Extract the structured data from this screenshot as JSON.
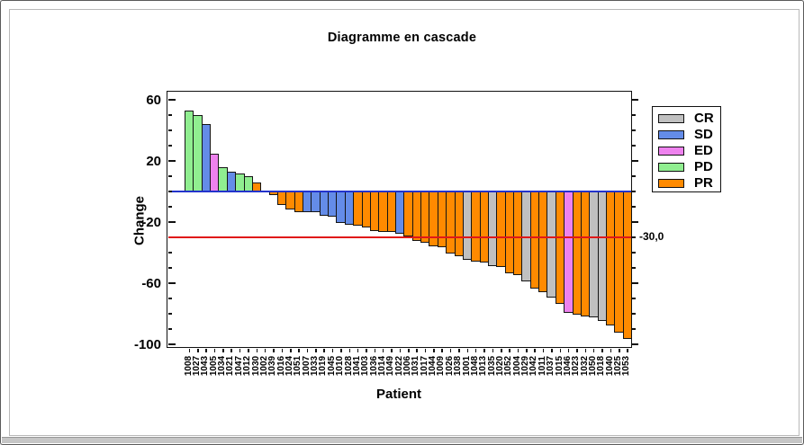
{
  "chart": {
    "title": "Diagramme en cascade",
    "y_axis": {
      "label": "Change",
      "major_ticks": [
        60,
        20,
        -20,
        -60,
        -100
      ],
      "minor_tick_step": 10,
      "range": [
        -102,
        65
      ]
    },
    "x_axis": {
      "label": "Patient"
    },
    "zero_line": {
      "value": 0,
      "color": "#2333cc"
    },
    "reference_line": {
      "value": -30,
      "label": "-30,0",
      "color": "#e01818"
    }
  },
  "legend": {
    "entries": [
      {
        "label": "CR",
        "color": "#c0c0c0"
      },
      {
        "label": "SD",
        "color": "#648ce8"
      },
      {
        "label": "ED",
        "color": "#ee82ee"
      },
      {
        "label": "PD",
        "color": "#90ee90"
      },
      {
        "label": "PR",
        "color": "#ff8a00"
      }
    ]
  },
  "chart_data": {
    "type": "bar",
    "title": "Diagramme en cascade",
    "xlabel": "Patient",
    "ylabel": "Change",
    "ylim": [
      -102,
      65
    ],
    "grid": false,
    "legend_position": "right",
    "group_colors": {
      "CR": "#c0c0c0",
      "SD": "#648ce8",
      "ED": "#ee82ee",
      "PD": "#90ee90",
      "PR": "#ff8a00"
    },
    "bars": [
      {
        "patient": "1008",
        "value": 53,
        "group": "PD"
      },
      {
        "patient": "1027",
        "value": 50,
        "group": "PD"
      },
      {
        "patient": "1043",
        "value": 44,
        "group": "SD"
      },
      {
        "patient": "1005",
        "value": 25,
        "group": "ED"
      },
      {
        "patient": "1034",
        "value": 16,
        "group": "PD"
      },
      {
        "patient": "1021",
        "value": 13,
        "group": "SD"
      },
      {
        "patient": "1047",
        "value": 12,
        "group": "PD"
      },
      {
        "patient": "1012",
        "value": 10,
        "group": "PD"
      },
      {
        "patient": "1030",
        "value": 6,
        "group": "PR"
      },
      {
        "patient": "1002",
        "value": 0,
        "group": "PR"
      },
      {
        "patient": "1039",
        "value": -2,
        "group": "PR"
      },
      {
        "patient": "1016",
        "value": -8,
        "group": "PR"
      },
      {
        "patient": "1024",
        "value": -11,
        "group": "PR"
      },
      {
        "patient": "1051",
        "value": -13,
        "group": "PR"
      },
      {
        "patient": "1007",
        "value": -13,
        "group": "SD"
      },
      {
        "patient": "1033",
        "value": -13,
        "group": "SD"
      },
      {
        "patient": "1019",
        "value": -15,
        "group": "SD"
      },
      {
        "patient": "1045",
        "value": -16,
        "group": "SD"
      },
      {
        "patient": "1010",
        "value": -20,
        "group": "SD"
      },
      {
        "patient": "1028",
        "value": -21,
        "group": "SD"
      },
      {
        "patient": "1041",
        "value": -22,
        "group": "PR"
      },
      {
        "patient": "1003",
        "value": -23,
        "group": "PR"
      },
      {
        "patient": "1036",
        "value": -25,
        "group": "PR"
      },
      {
        "patient": "1014",
        "value": -26,
        "group": "PR"
      },
      {
        "patient": "1049",
        "value": -26,
        "group": "PR"
      },
      {
        "patient": "1022",
        "value": -27,
        "group": "SD"
      },
      {
        "patient": "1006",
        "value": -29,
        "group": "PR"
      },
      {
        "patient": "1031",
        "value": -32,
        "group": "PR"
      },
      {
        "patient": "1017",
        "value": -33,
        "group": "PR"
      },
      {
        "patient": "1044",
        "value": -35,
        "group": "PR"
      },
      {
        "patient": "1009",
        "value": -36,
        "group": "PR"
      },
      {
        "patient": "1026",
        "value": -40,
        "group": "PR"
      },
      {
        "patient": "1038",
        "value": -42,
        "group": "PR"
      },
      {
        "patient": "1001",
        "value": -44,
        "group": "CR"
      },
      {
        "patient": "1048",
        "value": -45,
        "group": "PR"
      },
      {
        "patient": "1013",
        "value": -46,
        "group": "PR"
      },
      {
        "patient": "1035",
        "value": -48,
        "group": "CR"
      },
      {
        "patient": "1020",
        "value": -49,
        "group": "PR"
      },
      {
        "patient": "1052",
        "value": -53,
        "group": "PR"
      },
      {
        "patient": "1004",
        "value": -54,
        "group": "PR"
      },
      {
        "patient": "1029",
        "value": -58,
        "group": "CR"
      },
      {
        "patient": "1042",
        "value": -63,
        "group": "PR"
      },
      {
        "patient": "1011",
        "value": -65,
        "group": "PR"
      },
      {
        "patient": "1037",
        "value": -69,
        "group": "CR"
      },
      {
        "patient": "1015",
        "value": -73,
        "group": "PR"
      },
      {
        "patient": "1046",
        "value": -79,
        "group": "ED"
      },
      {
        "patient": "1023",
        "value": -80,
        "group": "PR"
      },
      {
        "patient": "1032",
        "value": -81,
        "group": "PR"
      },
      {
        "patient": "1050",
        "value": -82,
        "group": "CR"
      },
      {
        "patient": "1018",
        "value": -84,
        "group": "CR"
      },
      {
        "patient": "1040",
        "value": -87,
        "group": "PR"
      },
      {
        "patient": "1025",
        "value": -92,
        "group": "PR"
      },
      {
        "patient": "1053",
        "value": -96,
        "group": "PR"
      }
    ]
  }
}
